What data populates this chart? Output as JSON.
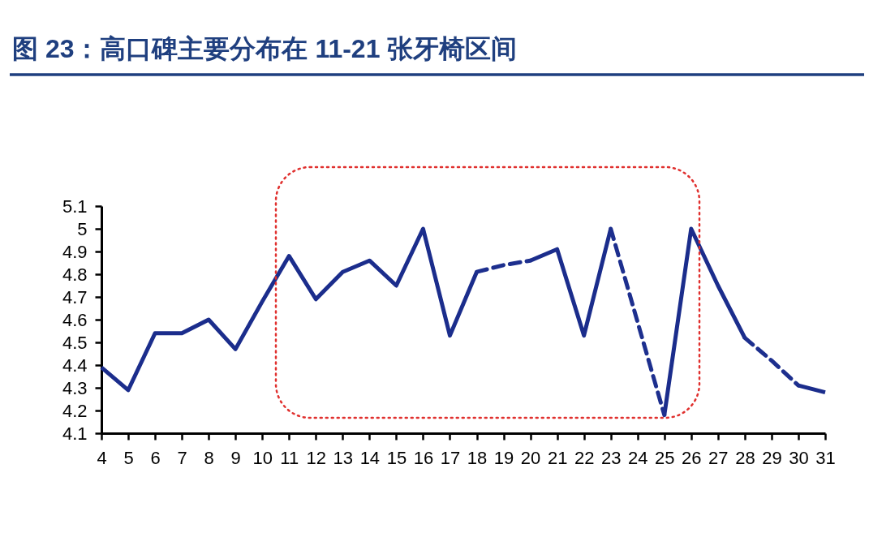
{
  "chart_data": {
    "type": "line",
    "title": "图 23：高口碑主要分布在 11-21 张牙椅区间",
    "categories": [
      "4",
      "5",
      "6",
      "7",
      "8",
      "9",
      "10",
      "11",
      "12",
      "13",
      "14",
      "15",
      "16",
      "17",
      "18",
      "19",
      "20",
      "21",
      "22",
      "23",
      "24",
      "25",
      "26",
      "27",
      "28",
      "29",
      "30",
      "31"
    ],
    "series": [
      {
        "color": "#1b2d8c",
        "line_style": "solid",
        "values": [
          4.39,
          4.29,
          4.54,
          4.54,
          4.6,
          4.47,
          4.68,
          4.88,
          4.69,
          4.81,
          4.86,
          4.75,
          5.0,
          4.53,
          4.81,
          null,
          4.86,
          4.91,
          4.53,
          5.0,
          null,
          4.18,
          5.0,
          4.75,
          4.52,
          null,
          4.31,
          4.28
        ]
      },
      {
        "color": "#1d2f8e",
        "line_style": "dashed",
        "values": [
          null,
          null,
          null,
          null,
          null,
          null,
          null,
          null,
          null,
          null,
          null,
          null,
          null,
          null,
          4.81,
          4.84,
          4.86,
          null,
          null,
          5.0,
          4.59,
          4.18,
          null,
          null,
          4.52,
          4.42,
          4.31,
          null
        ]
      }
    ],
    "ylim": [
      4.1,
      5.1
    ],
    "yticks": [
      4.1,
      4.2,
      4.3,
      4.4,
      4.5,
      4.6,
      4.7,
      4.8,
      4.9,
      5,
      5.1
    ]
  }
}
